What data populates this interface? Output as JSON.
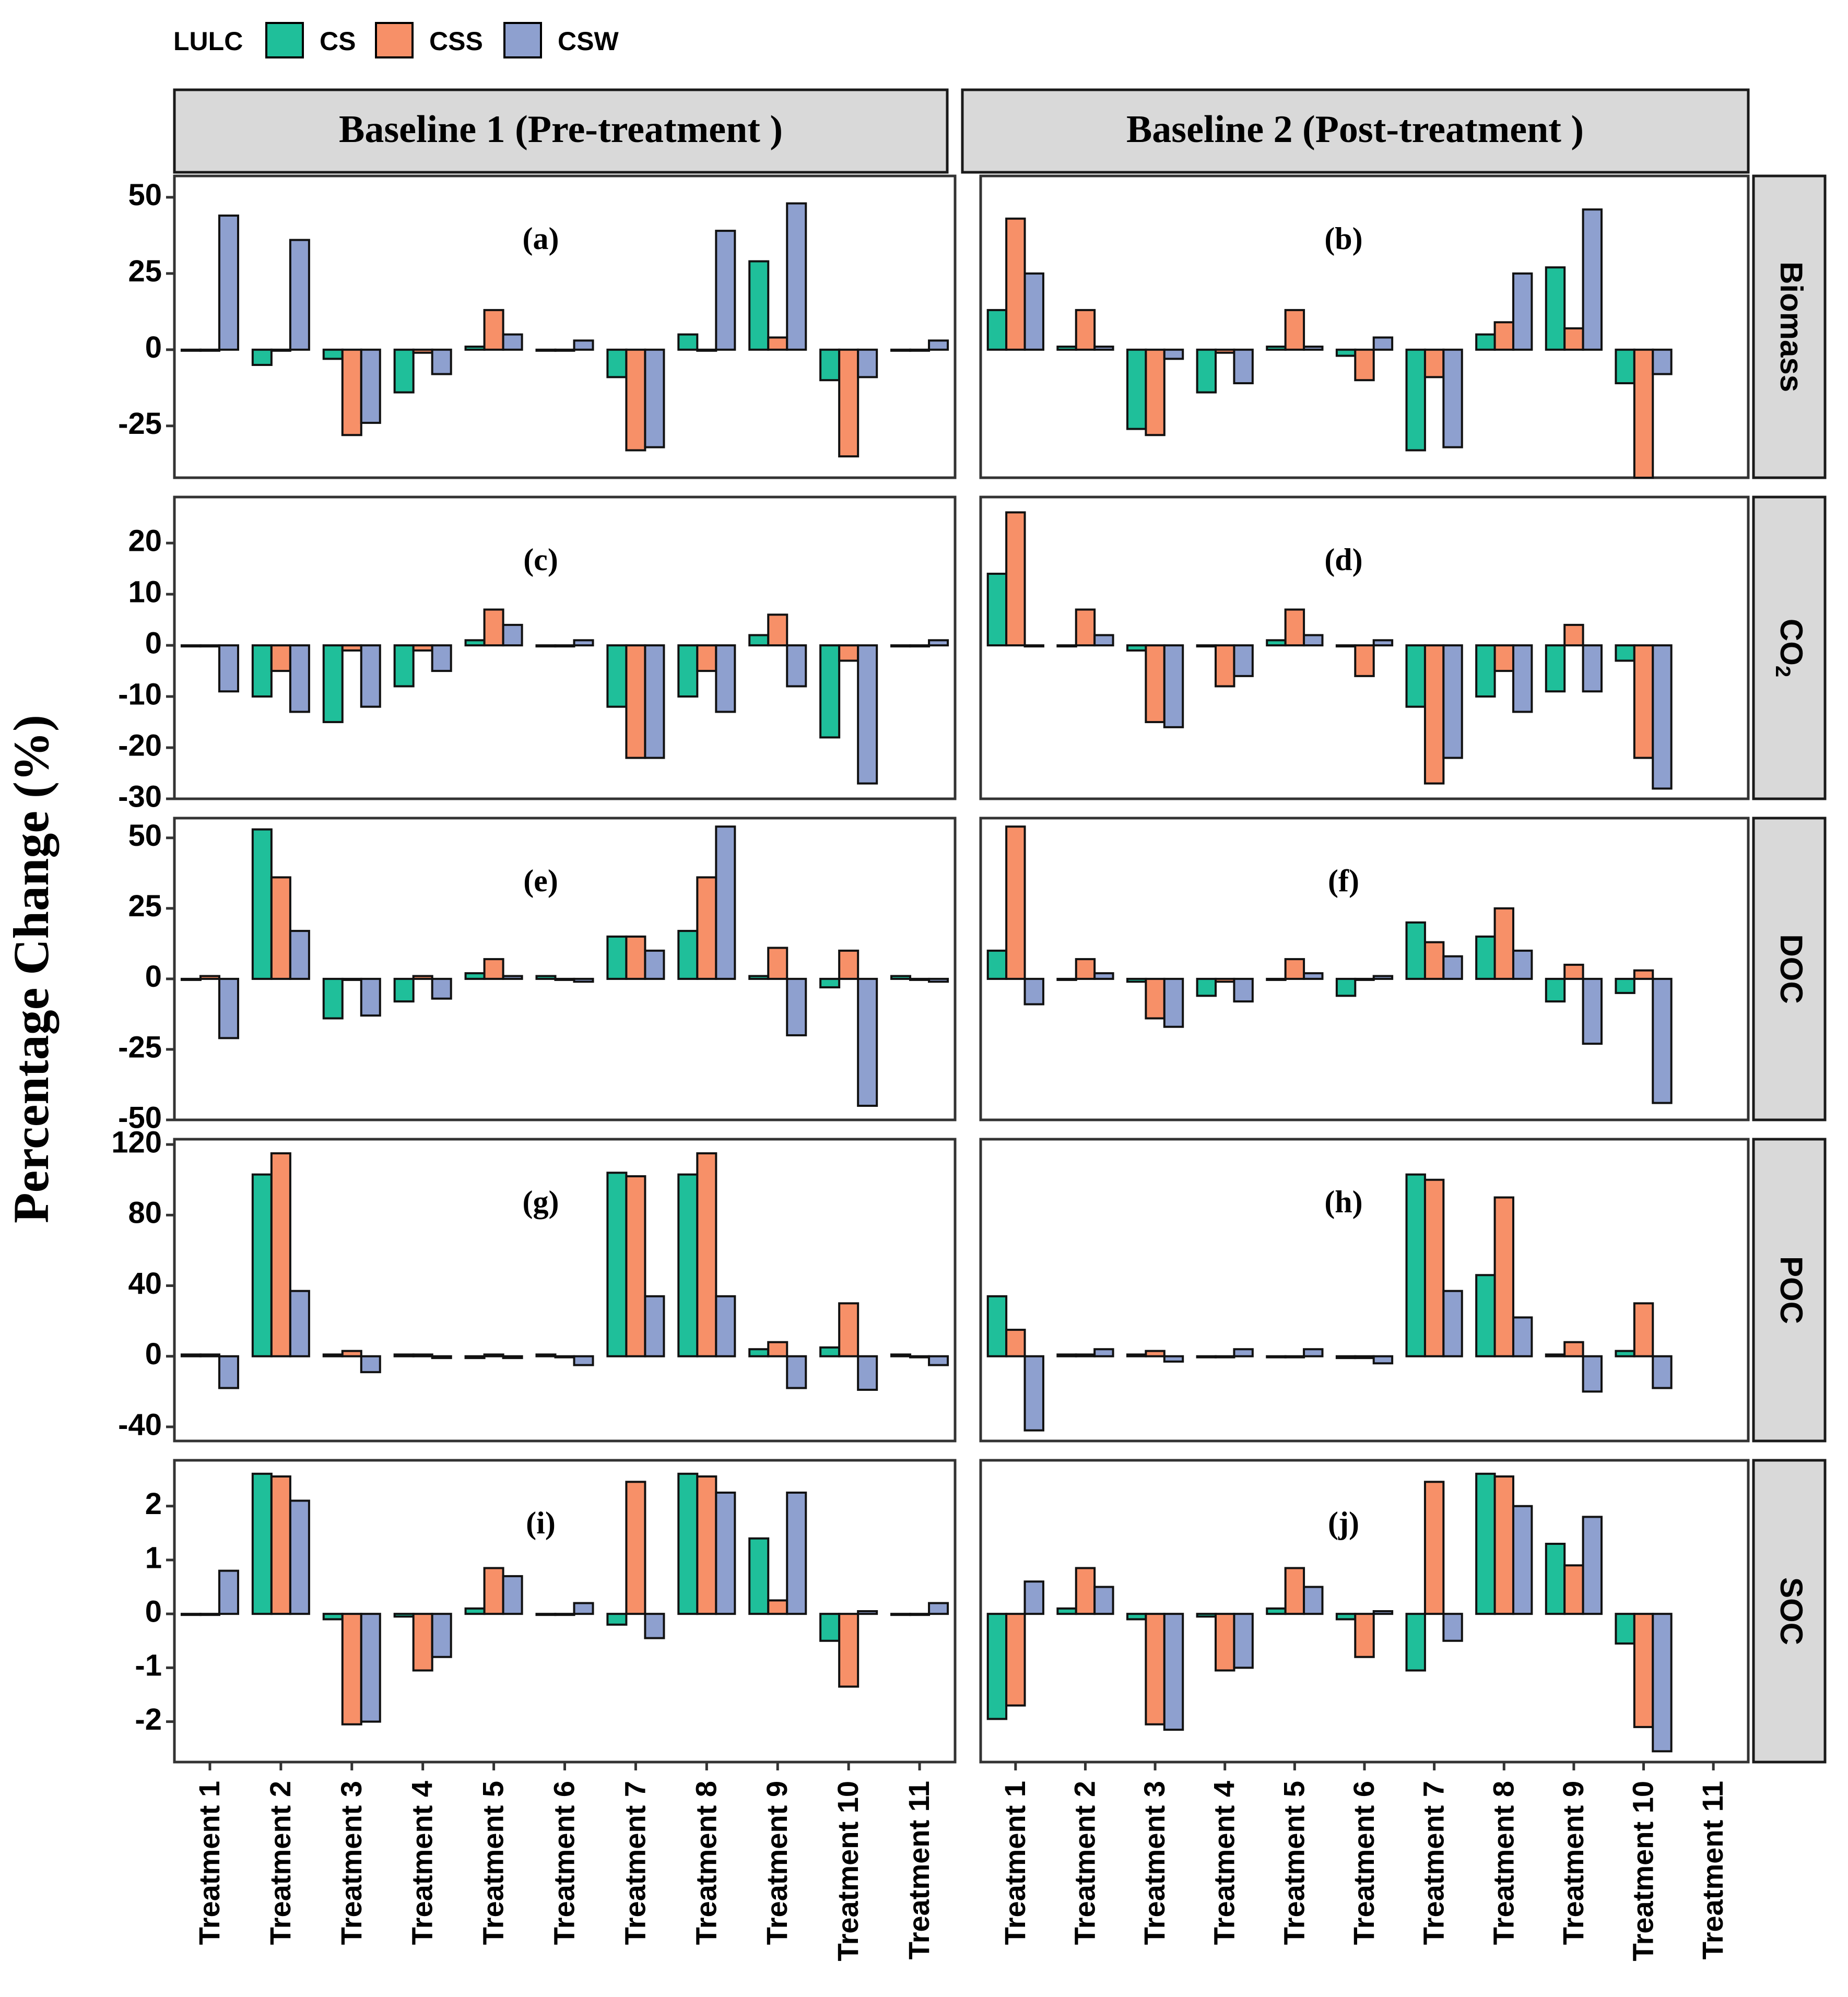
{
  "legend": {
    "title": "LULC",
    "items": [
      {
        "key": "CS",
        "label": "CS",
        "color": "#1fbf9a"
      },
      {
        "key": "CSS",
        "label": "CSS",
        "color": "#f79068"
      },
      {
        "key": "CSW",
        "label": "CSW",
        "color": "#8ea0cf"
      }
    ]
  },
  "ylabel": "Percentage Change (%)",
  "columns": [
    "Baseline 1 (Pre-treatment )",
    "Baseline 2 (Post-treatment )"
  ],
  "rows": [
    "Biomass",
    "CO2",
    "DOC",
    "POC",
    "SOC"
  ],
  "row_labels": [
    "Biomass",
    "CO",
    "DOC",
    "POC",
    "SOC"
  ],
  "co2_subscript": "2",
  "categories": [
    "Treatment 1",
    "Treatment 2",
    "Treatment 3",
    "Treatment 4",
    "Treatment 5",
    "Treatment 6",
    "Treatment 7",
    "Treatment 8",
    "Treatment 9",
    "Treatment 10",
    "Treatment 11"
  ],
  "chart_data": [
    {
      "type": "bar",
      "id": "a",
      "panel_label": "(a)",
      "variable": "Biomass",
      "baseline": "Baseline 1 (Pre-treatment )",
      "ylim": [
        -42,
        57
      ],
      "ticks": [
        -25,
        0,
        25,
        50
      ],
      "tick_labels": [
        "-25",
        "0",
        "25",
        "50"
      ],
      "series": [
        {
          "name": "CS",
          "values": [
            0,
            -5,
            -3,
            -14,
            1,
            0,
            -9,
            5,
            29,
            -10,
            0
          ]
        },
        {
          "name": "CSS",
          "values": [
            0,
            0,
            -28,
            -1,
            13,
            0,
            -33,
            0,
            4,
            -35,
            0
          ]
        },
        {
          "name": "CSW",
          "values": [
            44,
            36,
            -24,
            -8,
            5,
            3,
            -32,
            39,
            48,
            -9,
            3
          ]
        }
      ]
    },
    {
      "type": "bar",
      "id": "b",
      "panel_label": "(b)",
      "variable": "Biomass",
      "baseline": "Baseline 2 (Post-treatment )",
      "ylim": [
        -42,
        57
      ],
      "ticks": [
        -25,
        0,
        25,
        50
      ],
      "tick_labels": [
        "-25",
        "0",
        "25",
        "50"
      ],
      "series": [
        {
          "name": "CS",
          "values": [
            13,
            1,
            -26,
            -14,
            1,
            -2,
            -33,
            5,
            27,
            -11,
            null
          ]
        },
        {
          "name": "CSS",
          "values": [
            43,
            13,
            -28,
            -1,
            13,
            -10,
            -9,
            9,
            7,
            -42,
            null
          ]
        },
        {
          "name": "CSW",
          "values": [
            25,
            1,
            -3,
            -11,
            1,
            4,
            -32,
            25,
            46,
            -8,
            null
          ]
        }
      ]
    },
    {
      "type": "bar",
      "id": "c",
      "panel_label": "(c)",
      "variable": "CO2",
      "baseline": "Baseline 1 (Pre-treatment )",
      "ylim": [
        -30,
        29
      ],
      "ticks": [
        -30,
        -20,
        -10,
        0,
        10,
        20
      ],
      "tick_labels": [
        "-30",
        "-20",
        "-10",
        "0",
        "10",
        "20"
      ],
      "series": [
        {
          "name": "CS",
          "values": [
            0,
            -10,
            -15,
            -8,
            1,
            0,
            -12,
            -10,
            2,
            -18,
            0
          ]
        },
        {
          "name": "CSS",
          "values": [
            0,
            -5,
            -1,
            -1,
            7,
            0,
            -22,
            -5,
            6,
            -3,
            0
          ]
        },
        {
          "name": "CSW",
          "values": [
            -9,
            -13,
            -12,
            -5,
            4,
            1,
            -22,
            -13,
            -8,
            -27,
            1
          ]
        }
      ]
    },
    {
      "type": "bar",
      "id": "d",
      "panel_label": "(d)",
      "variable": "CO2",
      "baseline": "Baseline 2 (Post-treatment )",
      "ylim": [
        -30,
        29
      ],
      "ticks": [
        -30,
        -20,
        -10,
        0,
        10,
        20
      ],
      "tick_labels": [
        "-30",
        "-20",
        "-10",
        "0",
        "10",
        "20"
      ],
      "series": [
        {
          "name": "CS",
          "values": [
            14,
            0,
            -1,
            0,
            1,
            0,
            -12,
            -10,
            -9,
            -3,
            null
          ]
        },
        {
          "name": "CSS",
          "values": [
            26,
            7,
            -15,
            -8,
            7,
            -6,
            -27,
            -5,
            4,
            -22,
            null
          ]
        },
        {
          "name": "CSW",
          "values": [
            0,
            2,
            -16,
            -6,
            2,
            1,
            -22,
            -13,
            -9,
            -28,
            null
          ]
        }
      ]
    },
    {
      "type": "bar",
      "id": "e",
      "panel_label": "(e)",
      "variable": "DOC",
      "baseline": "Baseline 1 (Pre-treatment )",
      "ylim": [
        -50,
        57
      ],
      "ticks": [
        -50,
        -25,
        0,
        25,
        50
      ],
      "tick_labels": [
        "-50",
        "-25",
        "0",
        "25",
        "50"
      ],
      "series": [
        {
          "name": "CS",
          "values": [
            0,
            53,
            -14,
            -8,
            2,
            1,
            15,
            17,
            1,
            -3,
            1
          ]
        },
        {
          "name": "CSS",
          "values": [
            1,
            36,
            0,
            1,
            7,
            0,
            15,
            36,
            11,
            10,
            0
          ]
        },
        {
          "name": "CSW",
          "values": [
            -21,
            17,
            -13,
            -7,
            1,
            -1,
            10,
            54,
            -20,
            -45,
            -1
          ]
        }
      ]
    },
    {
      "type": "bar",
      "id": "f",
      "panel_label": "(f)",
      "variable": "DOC",
      "baseline": "Baseline 2 (Post-treatment )",
      "ylim": [
        -50,
        57
      ],
      "ticks": [
        -50,
        -25,
        0,
        25,
        50
      ],
      "tick_labels": [
        "-50",
        "-25",
        "0",
        "25",
        "50"
      ],
      "series": [
        {
          "name": "CS",
          "values": [
            10,
            0,
            -1,
            -6,
            0,
            -6,
            20,
            15,
            -8,
            -5,
            null
          ]
        },
        {
          "name": "CSS",
          "values": [
            54,
            7,
            -14,
            -1,
            7,
            0,
            13,
            25,
            5,
            3,
            null
          ]
        },
        {
          "name": "CSW",
          "values": [
            -9,
            2,
            -17,
            -8,
            2,
            1,
            8,
            10,
            -23,
            -44,
            null
          ]
        }
      ]
    },
    {
      "type": "bar",
      "id": "g",
      "panel_label": "(g)",
      "variable": "POC",
      "baseline": "Baseline 1 (Pre-treatment )",
      "ylim": [
        -48,
        123
      ],
      "ticks": [
        -40,
        0,
        40,
        80,
        120
      ],
      "tick_labels": [
        "-40",
        "0",
        "40",
        "80",
        "120"
      ],
      "series": [
        {
          "name": "CS",
          "values": [
            1,
            103,
            1,
            1,
            -1,
            1,
            104,
            103,
            4,
            5,
            1
          ]
        },
        {
          "name": "CSS",
          "values": [
            1,
            115,
            3,
            1,
            1,
            0,
            102,
            115,
            8,
            30,
            0
          ]
        },
        {
          "name": "CSW",
          "values": [
            -18,
            37,
            -9,
            -1,
            -1,
            -5,
            34,
            34,
            -18,
            -19,
            -5
          ]
        }
      ]
    },
    {
      "type": "bar",
      "id": "h",
      "panel_label": "(h)",
      "variable": "POC",
      "baseline": "Baseline 2 (Post-treatment )",
      "ylim": [
        -48,
        123
      ],
      "ticks": [
        -40,
        0,
        40,
        80,
        120
      ],
      "tick_labels": [
        "-40",
        "0",
        "40",
        "80",
        "120"
      ],
      "series": [
        {
          "name": "CS",
          "values": [
            34,
            1,
            1,
            0,
            0,
            -1,
            103,
            46,
            1,
            3,
            null
          ]
        },
        {
          "name": "CSS",
          "values": [
            15,
            1,
            3,
            0,
            0,
            -1,
            100,
            90,
            8,
            30,
            null
          ]
        },
        {
          "name": "CSW",
          "values": [
            -42,
            4,
            -3,
            4,
            4,
            -4,
            37,
            22,
            -20,
            -18,
            null
          ]
        }
      ]
    },
    {
      "type": "bar",
      "id": "i",
      "panel_label": "(i)",
      "variable": "SOC",
      "baseline": "Baseline 1 (Pre-treatment )",
      "ylim": [
        -2.75,
        2.85
      ],
      "ticks": [
        -2,
        -1,
        0,
        1,
        2
      ],
      "tick_labels": [
        "-2",
        "-1",
        "0",
        "1",
        "2"
      ],
      "series": [
        {
          "name": "CS",
          "values": [
            0,
            2.6,
            -0.1,
            -0.05,
            0.1,
            0,
            -0.2,
            2.6,
            1.4,
            -0.5,
            0
          ]
        },
        {
          "name": "CSS",
          "values": [
            0,
            2.55,
            -2.05,
            -1.05,
            0.85,
            0,
            2.45,
            2.55,
            0.25,
            -1.35,
            0
          ]
        },
        {
          "name": "CSW",
          "values": [
            0.8,
            2.1,
            -2.0,
            -0.8,
            0.7,
            0.2,
            -0.45,
            2.25,
            2.25,
            0.05,
            0.2
          ]
        }
      ]
    },
    {
      "type": "bar",
      "id": "j",
      "panel_label": "(j)",
      "variable": "SOC",
      "baseline": "Baseline 2 (Post-treatment )",
      "ylim": [
        -2.75,
        2.85
      ],
      "ticks": [
        -2,
        -1,
        0,
        1,
        2
      ],
      "tick_labels": [
        "-2",
        "-1",
        "0",
        "1",
        "2"
      ],
      "series": [
        {
          "name": "CS",
          "values": [
            -1.95,
            0.1,
            -0.1,
            -0.05,
            0.1,
            -0.1,
            -1.05,
            2.6,
            1.3,
            -0.55,
            null
          ]
        },
        {
          "name": "CSS",
          "values": [
            -1.7,
            0.85,
            -2.05,
            -1.05,
            0.85,
            -0.8,
            2.45,
            2.55,
            0.9,
            -2.1,
            null
          ]
        },
        {
          "name": "CSW",
          "values": [
            0.6,
            0.5,
            -2.15,
            -1.0,
            0.5,
            0.05,
            -0.5,
            2.0,
            1.8,
            -2.55,
            null
          ]
        }
      ]
    }
  ]
}
